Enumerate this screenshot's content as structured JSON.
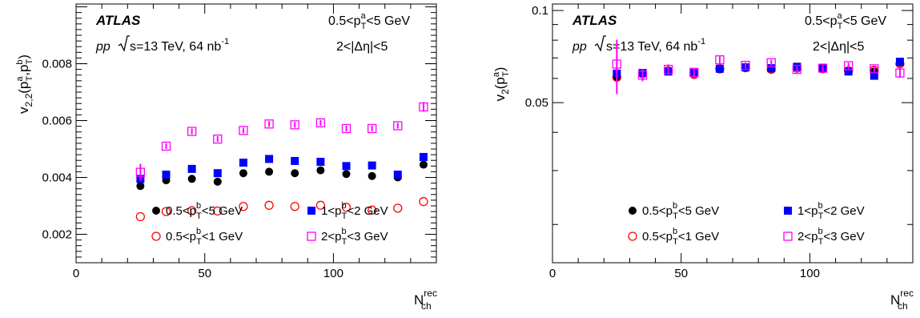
{
  "chart_data": [
    {
      "type": "scatter",
      "experiment": "ATLAS",
      "system_label": "pp",
      "energy_label": "s=13 TeV, 64 nb",
      "energy_sup": "-1",
      "pta_cut": {
        "pre": "0.5<p",
        "sup": "a",
        "sub": "T",
        "post": "<5 GeV"
      },
      "deta_cut": "2<|Δη|<5",
      "ylabel": {
        "main": "v",
        "main_sub": "2,2",
        "open": "(p",
        "a_sup": "a",
        "a_sub": "T",
        "sep": ",p",
        "b_sup": "b",
        "b_sub": "T",
        "close": ")"
      },
      "xlabel": {
        "main": "N",
        "sup": "rec",
        "sub": "ch"
      },
      "xlim": [
        0,
        140
      ],
      "ylim": [
        0.001,
        0.0101
      ],
      "yscale": "linear",
      "xticks": [
        0,
        50,
        100
      ],
      "yticks": [
        0.002,
        0.004,
        0.006,
        0.008
      ],
      "ytick_labels": [
        "0.002",
        "0.004",
        "0.006",
        "0.008"
      ],
      "xtick_labels": [
        "0",
        "50",
        "100"
      ],
      "legend_placement": "bottom",
      "x": [
        25,
        35,
        45,
        55,
        65,
        75,
        85,
        95,
        105,
        115,
        125,
        135
      ],
      "series": [
        {
          "name": "0.5<pT<5 GeV",
          "name_pre": "0.5<p",
          "name_sub": "T",
          "name_sup": "b",
          "name_post": "<5 GeV",
          "marker": "filled-circle",
          "color": "#000000",
          "values": [
            0.0037,
            0.0039,
            0.00395,
            0.00385,
            0.00415,
            0.0042,
            0.00415,
            0.00425,
            0.00412,
            0.00405,
            0.004,
            0.00445
          ]
        },
        {
          "name": "0.5<pT<1 GeV",
          "name_pre": "0.5<p",
          "name_sub": "T",
          "name_sup": "b",
          "name_post": "<1 GeV",
          "marker": "open-circle",
          "color": "#ff0000",
          "values": [
            0.00262,
            0.0028,
            0.00283,
            0.00282,
            0.00298,
            0.00302,
            0.00298,
            0.00302,
            0.00295,
            0.00285,
            0.00292,
            0.00315
          ]
        },
        {
          "name": "1<pT<2 GeV",
          "name_pre": "1<p",
          "name_sub": "T",
          "name_sup": "b",
          "name_post": "<2 GeV",
          "marker": "filled-square",
          "color": "#0000ff",
          "values": [
            0.00395,
            0.0041,
            0.0043,
            0.00415,
            0.00452,
            0.00465,
            0.00458,
            0.00455,
            0.0044,
            0.00442,
            0.0041,
            0.00472
          ]
        },
        {
          "name": "2<pT<3 GeV",
          "name_pre": "2<p",
          "name_sub": "T",
          "name_sup": "b",
          "name_post": "<3 GeV",
          "marker": "open-square",
          "color": "#ff00ff",
          "values": [
            0.00418,
            0.0051,
            0.00562,
            0.00535,
            0.00565,
            0.00588,
            0.00585,
            0.00592,
            0.00572,
            0.00572,
            0.00582,
            0.00648
          ],
          "errors": [
            0.0003,
            0.0001,
            0.0001,
            0.0001,
            0.0001,
            0.0001,
            0.0001,
            0.0001,
            0.0001,
            0.0001,
            0.0001,
            0.00017
          ]
        }
      ]
    },
    {
      "type": "scatter",
      "experiment": "ATLAS",
      "system_label": "pp",
      "energy_label": "s=13 TeV, 64 nb",
      "energy_sup": "-1",
      "pta_cut": {
        "pre": "0.5<p",
        "sup": "a",
        "sub": "T",
        "post": "<5 GeV"
      },
      "deta_cut": "2<|Δη|<5",
      "ylabel": {
        "main": "v",
        "main_sub": "2",
        "open": "(p",
        "a_sup": "a",
        "a_sub": "T",
        "close": ")"
      },
      "xlabel": {
        "main": "N",
        "sup": "rec",
        "sub": "ch"
      },
      "xlim": [
        0,
        140
      ],
      "ylim": [
        0.015,
        0.105
      ],
      "yscale": "log",
      "xticks": [
        0,
        50,
        100
      ],
      "yticks": [
        0.05,
        0.1
      ],
      "ytick_labels": [
        "0.05",
        "0.1"
      ],
      "xtick_labels": [
        "0",
        "50",
        "100"
      ],
      "legend_placement": "bottom",
      "x": [
        25,
        35,
        45,
        55,
        65,
        75,
        85,
        95,
        105,
        115,
        125,
        135
      ],
      "series": [
        {
          "name": "0.5<pT<5 GeV",
          "name_pre": "0.5<p",
          "name_sub": "T",
          "name_sup": "b",
          "name_post": "<5 GeV",
          "marker": "filled-circle",
          "color": "#000000",
          "values": [
            0.0605,
            0.062,
            0.0632,
            0.0622,
            0.0642,
            0.0648,
            0.0645,
            0.0652,
            0.0645,
            0.0638,
            0.0632,
            0.0675
          ]
        },
        {
          "name": "0.5<pT<1 GeV",
          "name_pre": "0.5<p",
          "name_sub": "T",
          "name_sup": "b",
          "name_post": "<1 GeV",
          "marker": "open-circle",
          "color": "#ff0000",
          "values": [
            0.0605,
            0.0622,
            0.0635,
            0.0618,
            0.0645,
            0.065,
            0.0642,
            0.0648,
            0.0645,
            0.0635,
            0.0638,
            0.067
          ]
        },
        {
          "name": "1<pT<2 GeV",
          "name_pre": "1<p",
          "name_sub": "T",
          "name_sup": "b",
          "name_post": "<2 GeV",
          "marker": "filled-square",
          "color": "#0000ff",
          "values": [
            0.0622,
            0.0625,
            0.0632,
            0.0625,
            0.0645,
            0.0652,
            0.0648,
            0.0655,
            0.0648,
            0.0632,
            0.0612,
            0.068
          ]
        },
        {
          "name": "2<pT<3 GeV",
          "name_pre": "2<p",
          "name_sub": "T",
          "name_sup": "b",
          "name_post": "<3 GeV",
          "marker": "open-square",
          "color": "#ff00ff",
          "values": [
            0.0668,
            0.0615,
            0.0642,
            0.0628,
            0.069,
            0.0662,
            0.0675,
            0.0642,
            0.0648,
            0.066,
            0.0645,
            0.0625
          ],
          "errors": [
            0.0135,
            0.0028,
            0.0025,
            0.0018,
            0.0018,
            0.0015,
            0.0015,
            0.0015,
            0.0015,
            0.0015,
            0.0015,
            0.0022
          ]
        }
      ]
    }
  ]
}
